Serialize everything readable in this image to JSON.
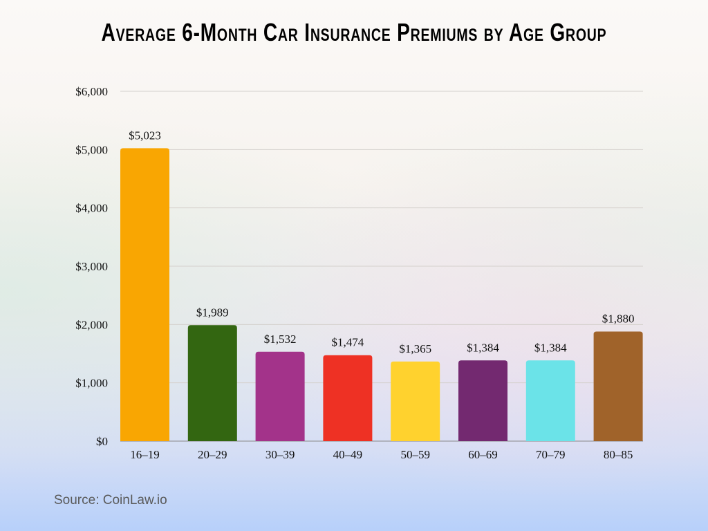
{
  "chart_data": {
    "type": "bar",
    "title": "Average 6-Month Car Insurance Premiums by Age Group",
    "xlabel": "",
    "ylabel": "",
    "categories": [
      "16–19",
      "20–29",
      "30–39",
      "40–49",
      "50–59",
      "60–69",
      "70–79",
      "80–85"
    ],
    "values": [
      5023,
      1989,
      1532,
      1474,
      1365,
      1384,
      1384,
      1880
    ],
    "data_labels": [
      "$5,023",
      "$1,989",
      "$1,532",
      "$1,474",
      "$1,365",
      "$1,384",
      "$1,384",
      "$1,880"
    ],
    "colors": [
      "#F9A602",
      "#336611",
      "#A3338A",
      "#EE3124",
      "#FFD22E",
      "#732970",
      "#6BE3E8",
      "#A0632A"
    ],
    "ylim": [
      0,
      6000
    ],
    "yticks": [
      0,
      1000,
      2000,
      3000,
      4000,
      5000,
      6000
    ],
    "ytick_labels": [
      "$0",
      "$1,000",
      "$2,000",
      "$3,000",
      "$4,000",
      "$5,000",
      "$6,000"
    ],
    "grid": true,
    "legend": "none"
  },
  "source": "Source: CoinLaw.io"
}
